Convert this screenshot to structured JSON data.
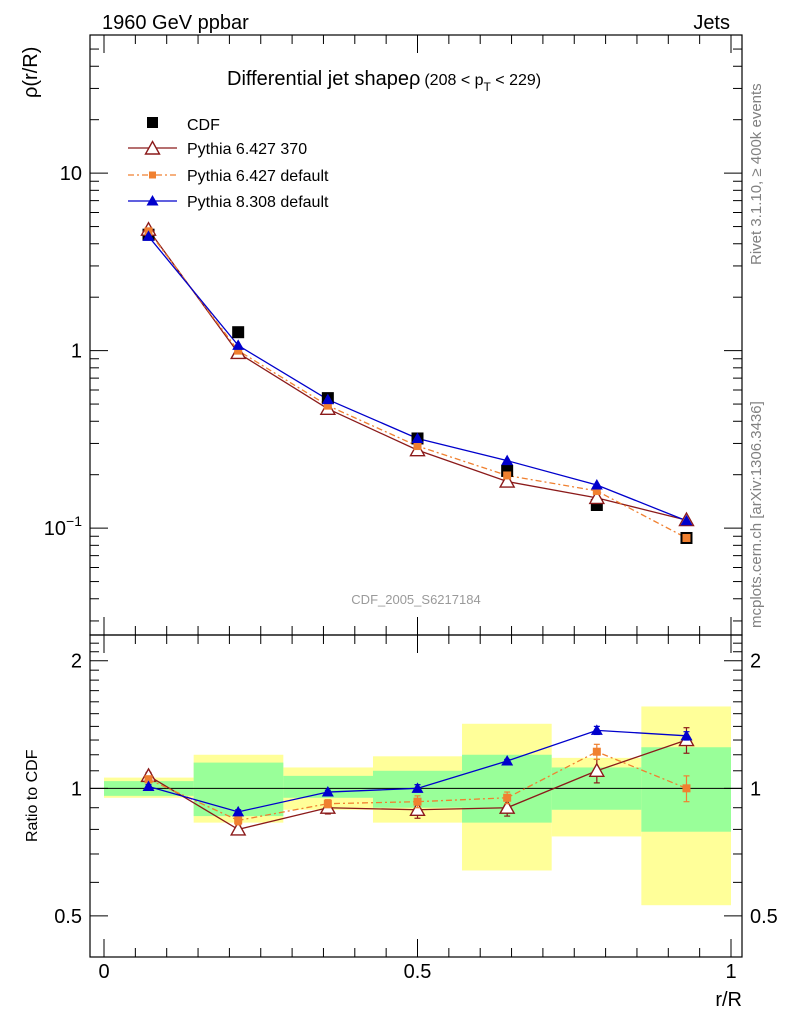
{
  "header": {
    "left": "1960 GeV ppbar",
    "right": "Jets"
  },
  "side_labels": {
    "rivet": "Rivet 3.1.10, ≥ 400k events",
    "mcplots": "mcplots.cern.ch [arXiv:1306.3436]"
  },
  "watermark": "CDF_2005_S6217184",
  "chart_data": {
    "type": "line",
    "title_main": "Differential jet shapeρ",
    "title_range_left": "(208 < p",
    "title_range_sub": "T",
    "title_range_right": " < 229)",
    "xlabel": "r/R",
    "ylabel_top": "ρ(r/R)",
    "ylabel_bottom": "Ratio to CDF",
    "xlim": [
      0,
      1
    ],
    "ylim_top": [
      0.025,
      60
    ],
    "ylim_bottom": [
      0.4,
      2.3
    ],
    "x_ticks": [
      "0",
      "0.5",
      "1"
    ],
    "y_ticks_top": [
      "10",
      "1"
    ],
    "y_tick_top_minus1_base": "10",
    "y_tick_top_minus1_exp": "−1",
    "y_ticks_bottom": [
      "2",
      "1",
      "0.5"
    ],
    "colors": {
      "cdf": "#000000",
      "p6_370": "#8b1a1a",
      "p6_default": "#f08030",
      "p8_default": "#0000cc",
      "band_inner": "#99ff99",
      "band_outer": "#ffff99"
    },
    "bins": [
      [
        0.0,
        0.143
      ],
      [
        0.143,
        0.286
      ],
      [
        0.286,
        0.429
      ],
      [
        0.429,
        0.571
      ],
      [
        0.571,
        0.714
      ],
      [
        0.714,
        0.857
      ],
      [
        0.857,
        1.0
      ]
    ],
    "x": [
      0.071,
      0.214,
      0.357,
      0.5,
      0.643,
      0.786,
      0.929
    ],
    "series": [
      {
        "name": "CDF",
        "key": "cdf",
        "marker": "square",
        "values": [
          4.5,
          1.27,
          0.54,
          0.32,
          0.21,
          0.135,
          0.088
        ]
      },
      {
        "name": "Pythia 6.427 370",
        "key": "p6_370",
        "marker": "triangle-open",
        "values": [
          4.8,
          0.97,
          0.47,
          0.275,
          0.183,
          0.148,
          0.111
        ],
        "ratio": [
          1.07,
          0.8,
          0.9,
          0.89,
          0.9,
          1.1,
          1.3
        ],
        "ratio_err": [
          0.02,
          0.02,
          0.03,
          0.04,
          0.04,
          0.07,
          0.09
        ]
      },
      {
        "name": "Pythia 6.427 default",
        "key": "p6_default",
        "marker": "square-small",
        "values": [
          4.7,
          1.0,
          0.49,
          0.29,
          0.198,
          0.162,
          0.088
        ],
        "ratio": [
          1.05,
          0.84,
          0.92,
          0.93,
          0.95,
          1.22,
          1.0
        ],
        "ratio_err": [
          0.02,
          0.02,
          0.02,
          0.03,
          0.03,
          0.05,
          0.07
        ]
      },
      {
        "name": "Pythia 8.308 default",
        "key": "p8_default",
        "marker": "triangle-filled",
        "values": [
          4.4,
          1.07,
          0.53,
          0.32,
          0.24,
          0.175,
          0.11
        ],
        "ratio": [
          1.01,
          0.88,
          0.98,
          1.0,
          1.16,
          1.37,
          1.33
        ],
        "ratio_err": [
          0.01,
          0.01,
          0.01,
          0.02,
          0.01,
          0.03,
          0.03
        ]
      }
    ],
    "cdf_stat_band": [
      [
        0.96,
        1.04
      ],
      [
        0.86,
        1.15
      ],
      [
        0.95,
        1.07
      ],
      [
        0.9,
        1.1
      ],
      [
        0.83,
        1.2
      ],
      [
        0.89,
        1.12
      ],
      [
        0.79,
        1.25
      ]
    ],
    "cdf_total_band": [
      [
        0.95,
        1.06
      ],
      [
        0.83,
        1.2
      ],
      [
        0.89,
        1.12
      ],
      [
        0.83,
        1.19
      ],
      [
        0.64,
        1.42
      ],
      [
        0.77,
        1.18
      ],
      [
        0.53,
        1.56
      ]
    ]
  }
}
